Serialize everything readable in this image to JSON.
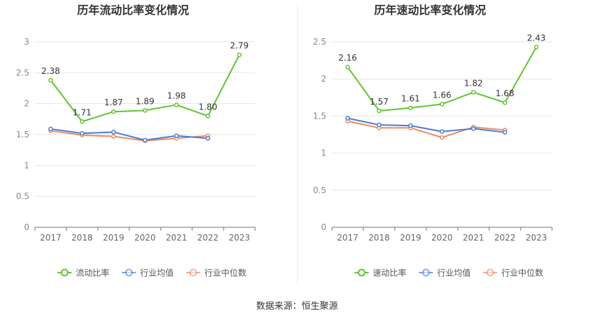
{
  "chart_data": [
    {
      "type": "line",
      "title": "历年流动比率变化情况",
      "categories": [
        "2017",
        "2018",
        "2019",
        "2020",
        "2021",
        "2022",
        "2023"
      ],
      "ylim": [
        0,
        3
      ],
      "yticks": [
        0,
        0.5,
        1,
        1.5,
        2,
        2.5,
        3
      ],
      "ytick_labels": [
        "0",
        "0.5",
        "1",
        "1.5",
        "2",
        "2.5",
        "3"
      ],
      "grid": true,
      "legend_position": "bottom",
      "series": [
        {
          "name": "流动比率",
          "color": "#5ec52e",
          "values": [
            2.38,
            1.71,
            1.87,
            1.89,
            1.98,
            1.8,
            2.79
          ],
          "labels": [
            "2.38",
            "1.71",
            "1.87",
            "1.89",
            "1.98",
            "1.80",
            "2.79"
          ]
        },
        {
          "name": "行业均值",
          "color": "#4a7bd6",
          "values": [
            1.59,
            1.52,
            1.54,
            1.41,
            1.48,
            1.44,
            null
          ]
        },
        {
          "name": "行业中位数",
          "color": "#f08a5d",
          "values": [
            1.56,
            1.49,
            1.47,
            1.4,
            1.44,
            1.48,
            null
          ]
        }
      ]
    },
    {
      "type": "line",
      "title": "历年速动比率变化情况",
      "categories": [
        "2017",
        "2018",
        "2019",
        "2020",
        "2021",
        "2022",
        "2023"
      ],
      "ylim": [
        0,
        2.5
      ],
      "yticks": [
        0,
        0.5,
        1,
        1.5,
        2,
        2.5
      ],
      "ytick_labels": [
        "0",
        "0.5",
        "1",
        "1.5",
        "2",
        "2.5"
      ],
      "grid": true,
      "legend_position": "bottom",
      "series": [
        {
          "name": "速动比率",
          "color": "#5ec52e",
          "values": [
            2.16,
            1.57,
            1.61,
            1.66,
            1.82,
            1.68,
            2.43
          ],
          "labels": [
            "2.16",
            "1.57",
            "1.61",
            "1.66",
            "1.82",
            "1.68",
            "2.43"
          ]
        },
        {
          "name": "行业均值",
          "color": "#4a7bd6",
          "values": [
            1.47,
            1.38,
            1.37,
            1.29,
            1.33,
            1.28,
            null
          ]
        },
        {
          "name": "行业中位数",
          "color": "#f08a5d",
          "values": [
            1.43,
            1.34,
            1.34,
            1.21,
            1.35,
            1.31,
            null
          ]
        }
      ]
    }
  ],
  "source_text": "数据来源：恒生聚源"
}
